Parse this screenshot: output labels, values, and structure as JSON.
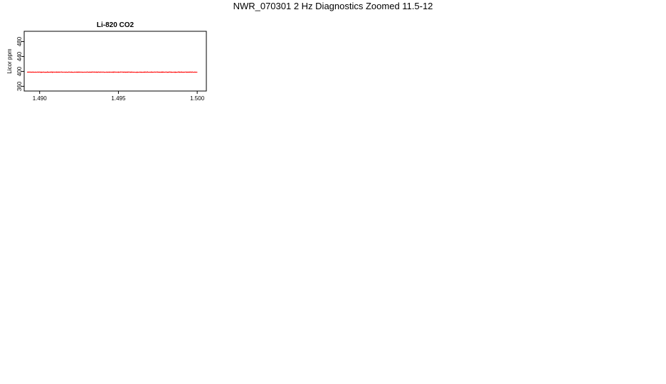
{
  "title": "NWR_070301  2 Hz Diagnostics Zoomed 11.5-12",
  "chart_data": [
    {
      "type": "line",
      "title": "Li-820 CO2",
      "ylabel": "Licor ppm",
      "color": "#ff0000",
      "xlim": [
        1.4892,
        1.5004
      ],
      "xticks": [
        1.49,
        1.495,
        1.5
      ],
      "xtick_labels": [
        "1.490",
        "1.495",
        "1.500"
      ],
      "ylim": [
        355,
        500
      ],
      "yticks": [
        360,
        400,
        440,
        480
      ],
      "ytick_labels": [
        "360",
        "400",
        "440",
        "480"
      ],
      "noise": 0.6,
      "series": [
        {
          "name": "CO2",
          "x": [
            1.4892,
            1.4897,
            1.4897,
            1.4901,
            1.4901,
            1.4905,
            1.4905,
            1.4908,
            1.4908,
            1.4913,
            1.4913,
            1.4916,
            1.4916,
            1.4917,
            1.4917,
            1.4924,
            1.4924,
            1.4941,
            1.4941,
            1.4947,
            1.4947,
            1.495,
            1.495,
            1.4962,
            1.4962,
            1.4971,
            1.4971,
            1.4981,
            1.4981,
            1.499,
            1.499,
            1.5
          ],
          "y": [
            398,
            398,
            398,
            398,
            398,
            398,
            398,
            398,
            398,
            398,
            398,
            398,
            398,
            398,
            398,
            398,
            398,
            398,
            398,
            398,
            398,
            398,
            398,
            398,
            398,
            398,
            398,
            398,
            398,
            398,
            398,
            398
          ]
        }
      ]
    }
  ]
}
